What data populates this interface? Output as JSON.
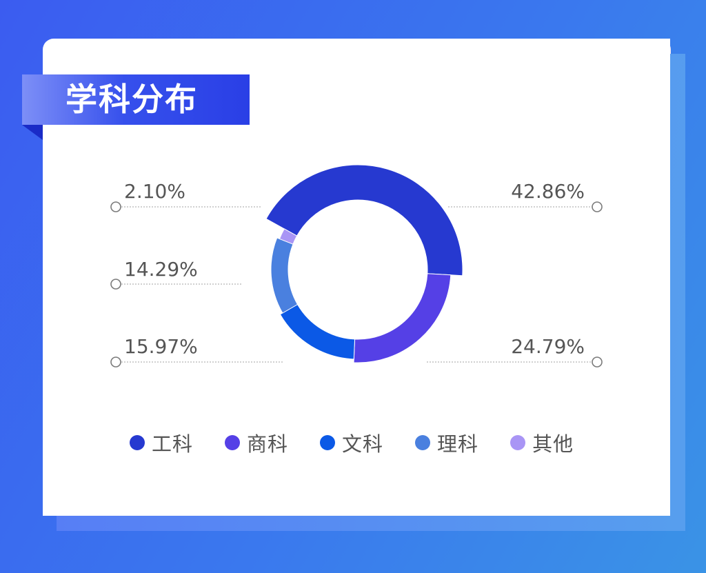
{
  "title": "学科分布",
  "chart_data": {
    "type": "pie",
    "donut": true,
    "series": [
      {
        "name": "工科",
        "value": 42.86,
        "label": "42.86%",
        "color": "#2639d0"
      },
      {
        "name": "商科",
        "value": 24.79,
        "label": "24.79%",
        "color": "#5540e6"
      },
      {
        "name": "文科",
        "value": 15.97,
        "label": "15.97%",
        "color": "#0b59e6"
      },
      {
        "name": "理科",
        "value": 14.29,
        "label": "14.29%",
        "color": "#4a80df"
      },
      {
        "name": "其他",
        "value": 2.1,
        "label": "2.10%",
        "color": "#a995f5"
      }
    ],
    "legend_position": "bottom"
  }
}
